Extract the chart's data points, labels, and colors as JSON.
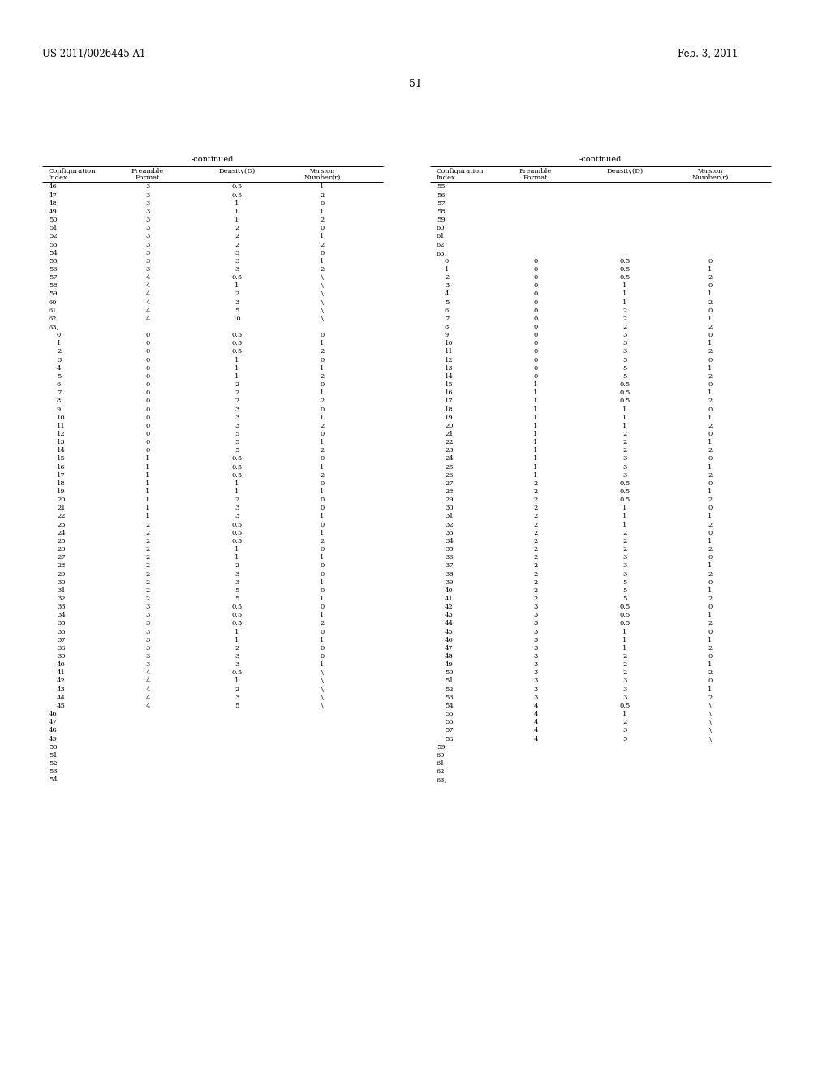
{
  "patent_number": "US 2011/0026445 A1",
  "date": "Feb. 3, 2011",
  "page_number": "51",
  "background_color": "#ffffff",
  "left_rows": [
    [
      "46",
      "3",
      "0.5",
      "1"
    ],
    [
      "47",
      "3",
      "0.5",
      "2"
    ],
    [
      "48",
      "3",
      "1",
      "0"
    ],
    [
      "49",
      "3",
      "1",
      "1"
    ],
    [
      "50",
      "3",
      "1",
      "2"
    ],
    [
      "51",
      "3",
      "2",
      "0"
    ],
    [
      "52",
      "3",
      "2",
      "1"
    ],
    [
      "53",
      "3",
      "2",
      "2"
    ],
    [
      "54",
      "3",
      "3",
      "0"
    ],
    [
      "55",
      "3",
      "3",
      "1"
    ],
    [
      "56",
      "3",
      "3",
      "2"
    ],
    [
      "57",
      "4",
      "0.5",
      "\\"
    ],
    [
      "58",
      "4",
      "1",
      "\\"
    ],
    [
      "59",
      "4",
      "2",
      "\\"
    ],
    [
      "60",
      "4",
      "3",
      "\\"
    ],
    [
      "61",
      "4",
      "5",
      "\\"
    ],
    [
      "62",
      "4",
      "10",
      "\\"
    ],
    [
      "63,",
      "",
      "",
      ""
    ],
    [
      "0",
      "0",
      "0.5",
      "0"
    ],
    [
      "1",
      "0",
      "0.5",
      "1"
    ],
    [
      "2",
      "0",
      "0.5",
      "2"
    ],
    [
      "3",
      "0",
      "1",
      "0"
    ],
    [
      "4",
      "0",
      "1",
      "1"
    ],
    [
      "5",
      "0",
      "1",
      "2"
    ],
    [
      "6",
      "0",
      "2",
      "0"
    ],
    [
      "7",
      "0",
      "2",
      "1"
    ],
    [
      "8",
      "0",
      "2",
      "2"
    ],
    [
      "9",
      "0",
      "3",
      "0"
    ],
    [
      "10",
      "0",
      "3",
      "1"
    ],
    [
      "11",
      "0",
      "3",
      "2"
    ],
    [
      "12",
      "0",
      "5",
      "0"
    ],
    [
      "13",
      "0",
      "5",
      "1"
    ],
    [
      "14",
      "0",
      "5",
      "2"
    ],
    [
      "15",
      "1",
      "0.5",
      "0"
    ],
    [
      "16",
      "1",
      "0.5",
      "1"
    ],
    [
      "17",
      "1",
      "0.5",
      "2"
    ],
    [
      "18",
      "1",
      "1",
      "0"
    ],
    [
      "19",
      "1",
      "1",
      "1"
    ],
    [
      "20",
      "1",
      "2",
      "0"
    ],
    [
      "21",
      "1",
      "3",
      "0"
    ],
    [
      "22",
      "1",
      "3",
      "1"
    ],
    [
      "23",
      "2",
      "0.5",
      "0"
    ],
    [
      "24",
      "2",
      "0.5",
      "1"
    ],
    [
      "25",
      "2",
      "0.5",
      "2"
    ],
    [
      "26",
      "2",
      "1",
      "0"
    ],
    [
      "27",
      "2",
      "1",
      "1"
    ],
    [
      "28",
      "2",
      "2",
      "0"
    ],
    [
      "29",
      "2",
      "3",
      "0"
    ],
    [
      "30",
      "2",
      "3",
      "1"
    ],
    [
      "31",
      "2",
      "5",
      "0"
    ],
    [
      "32",
      "2",
      "5",
      "1"
    ],
    [
      "33",
      "3",
      "0.5",
      "0"
    ],
    [
      "34",
      "3",
      "0.5",
      "1"
    ],
    [
      "35",
      "3",
      "0.5",
      "2"
    ],
    [
      "36",
      "3",
      "1",
      "0"
    ],
    [
      "37",
      "3",
      "1",
      "1"
    ],
    [
      "38",
      "3",
      "2",
      "0"
    ],
    [
      "39",
      "3",
      "3",
      "0"
    ],
    [
      "40",
      "3",
      "3",
      "1"
    ],
    [
      "41",
      "4",
      "0.5",
      "\\"
    ],
    [
      "42",
      "4",
      "1",
      "\\"
    ],
    [
      "43",
      "4",
      "2",
      "\\"
    ],
    [
      "44",
      "4",
      "3",
      "\\"
    ],
    [
      "45",
      "4",
      "5",
      "\\"
    ],
    [
      "46",
      "",
      "",
      ""
    ],
    [
      "47",
      "",
      "",
      ""
    ],
    [
      "48",
      "",
      "",
      ""
    ],
    [
      "49",
      "",
      "",
      ""
    ],
    [
      "50",
      "",
      "",
      ""
    ],
    [
      "51",
      "",
      "",
      ""
    ],
    [
      "52",
      "",
      "",
      ""
    ],
    [
      "53",
      "",
      "",
      ""
    ],
    [
      "54",
      "",
      "",
      ""
    ]
  ],
  "right_rows": [
    [
      "55",
      "",
      "",
      ""
    ],
    [
      "56",
      "",
      "",
      ""
    ],
    [
      "57",
      "",
      "",
      ""
    ],
    [
      "58",
      "",
      "",
      ""
    ],
    [
      "59",
      "",
      "",
      ""
    ],
    [
      "60",
      "",
      "",
      ""
    ],
    [
      "61",
      "",
      "",
      ""
    ],
    [
      "62",
      "",
      "",
      ""
    ],
    [
      "63,",
      "",
      "",
      ""
    ],
    [
      "0",
      "0",
      "0.5",
      "0"
    ],
    [
      "1",
      "0",
      "0.5",
      "1"
    ],
    [
      "2",
      "0",
      "0.5",
      "2"
    ],
    [
      "3",
      "0",
      "1",
      "0"
    ],
    [
      "4",
      "0",
      "1",
      "1"
    ],
    [
      "5",
      "0",
      "1",
      "2"
    ],
    [
      "6",
      "0",
      "2",
      "0"
    ],
    [
      "7",
      "0",
      "2",
      "1"
    ],
    [
      "8",
      "0",
      "2",
      "2"
    ],
    [
      "9",
      "0",
      "3",
      "0"
    ],
    [
      "10",
      "0",
      "3",
      "1"
    ],
    [
      "11",
      "0",
      "3",
      "2"
    ],
    [
      "12",
      "0",
      "5",
      "0"
    ],
    [
      "13",
      "0",
      "5",
      "1"
    ],
    [
      "14",
      "0",
      "5",
      "2"
    ],
    [
      "15",
      "1",
      "0.5",
      "0"
    ],
    [
      "16",
      "1",
      "0.5",
      "1"
    ],
    [
      "17",
      "1",
      "0.5",
      "2"
    ],
    [
      "18",
      "1",
      "1",
      "0"
    ],
    [
      "19",
      "1",
      "1",
      "1"
    ],
    [
      "20",
      "1",
      "1",
      "2"
    ],
    [
      "21",
      "1",
      "2",
      "0"
    ],
    [
      "22",
      "1",
      "2",
      "1"
    ],
    [
      "23",
      "1",
      "2",
      "2"
    ],
    [
      "24",
      "1",
      "3",
      "0"
    ],
    [
      "25",
      "1",
      "3",
      "1"
    ],
    [
      "26",
      "1",
      "3",
      "2"
    ],
    [
      "27",
      "2",
      "0.5",
      "0"
    ],
    [
      "28",
      "2",
      "0.5",
      "1"
    ],
    [
      "29",
      "2",
      "0.5",
      "2"
    ],
    [
      "30",
      "2",
      "1",
      "0"
    ],
    [
      "31",
      "2",
      "1",
      "1"
    ],
    [
      "32",
      "2",
      "1",
      "2"
    ],
    [
      "33",
      "2",
      "2",
      "0"
    ],
    [
      "34",
      "2",
      "2",
      "1"
    ],
    [
      "35",
      "2",
      "2",
      "2"
    ],
    [
      "36",
      "2",
      "3",
      "0"
    ],
    [
      "37",
      "2",
      "3",
      "1"
    ],
    [
      "38",
      "2",
      "3",
      "2"
    ],
    [
      "39",
      "2",
      "5",
      "0"
    ],
    [
      "40",
      "2",
      "5",
      "1"
    ],
    [
      "41",
      "2",
      "5",
      "2"
    ],
    [
      "42",
      "3",
      "0.5",
      "0"
    ],
    [
      "43",
      "3",
      "0.5",
      "1"
    ],
    [
      "44",
      "3",
      "0.5",
      "2"
    ],
    [
      "45",
      "3",
      "1",
      "0"
    ],
    [
      "46",
      "3",
      "1",
      "1"
    ],
    [
      "47",
      "3",
      "1",
      "2"
    ],
    [
      "48",
      "3",
      "2",
      "0"
    ],
    [
      "49",
      "3",
      "2",
      "1"
    ],
    [
      "50",
      "3",
      "2",
      "2"
    ],
    [
      "51",
      "3",
      "3",
      "0"
    ],
    [
      "52",
      "3",
      "3",
      "1"
    ],
    [
      "53",
      "3",
      "3",
      "2"
    ],
    [
      "54",
      "4",
      "0.5",
      "\\"
    ],
    [
      "55",
      "4",
      "1",
      "\\"
    ],
    [
      "56",
      "4",
      "2",
      "\\"
    ],
    [
      "57",
      "4",
      "3",
      "\\"
    ],
    [
      "58",
      "4",
      "5",
      "\\"
    ],
    [
      "59",
      "",
      "",
      ""
    ],
    [
      "60",
      "",
      "",
      ""
    ],
    [
      "61",
      "",
      "",
      ""
    ],
    [
      "62",
      "",
      "",
      ""
    ],
    [
      "63,",
      "",
      "",
      ""
    ]
  ]
}
